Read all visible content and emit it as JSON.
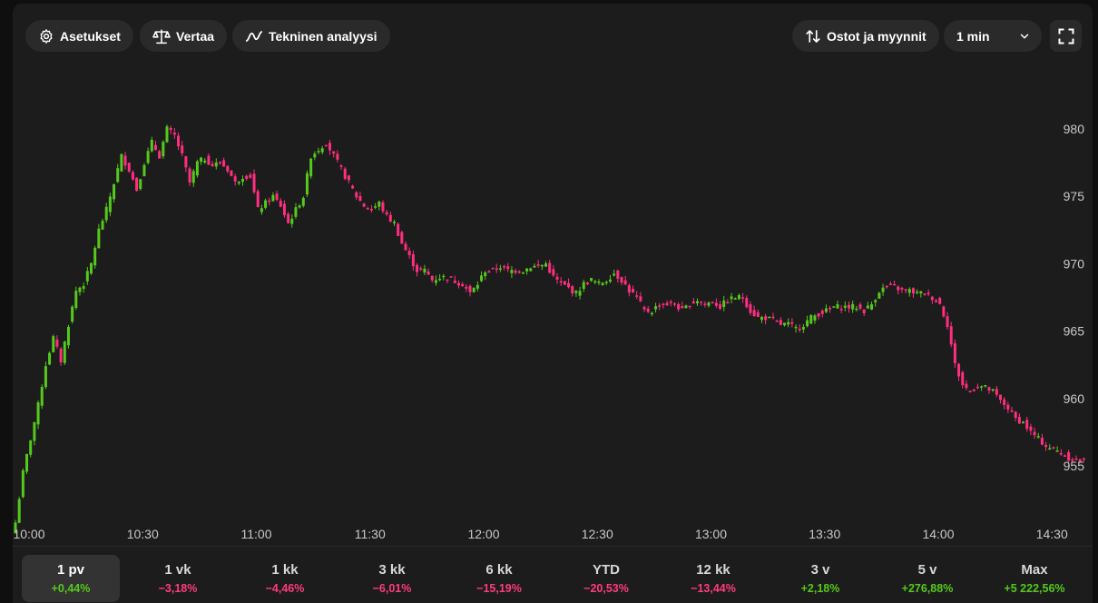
{
  "toolbar": {
    "settings_label": "Asetukset",
    "compare_label": "Vertaa",
    "technical_label": "Tekninen analyysi",
    "trades_label": "Ostot ja myynnit",
    "interval_value": "1 min"
  },
  "colors": {
    "up": "#55c91c",
    "down": "#ff2e7e",
    "positive_text": "#55c91c",
    "negative_text": "#ff3b7f"
  },
  "chart_data": {
    "type": "candlestick",
    "interval": "1 min",
    "x_ticks": [
      "10:00",
      "10:30",
      "11:00",
      "11:30",
      "12:00",
      "12:30",
      "13:00",
      "13:30",
      "14:00",
      "14:30"
    ],
    "y_ticks": [
      955,
      960,
      965,
      970,
      975,
      980
    ],
    "ylim": [
      953.5,
      985.5
    ],
    "grid": false,
    "close_path": [
      [
        0,
        950.8
      ],
      [
        2,
        954.5
      ],
      [
        4,
        957.0
      ],
      [
        6,
        959.5
      ],
      [
        8,
        962.5
      ],
      [
        10,
        964.5
      ],
      [
        12,
        962.8
      ],
      [
        14,
        965.5
      ],
      [
        16,
        968.0
      ],
      [
        18,
        968.5
      ],
      [
        20,
        970.0
      ],
      [
        22,
        972.5
      ],
      [
        24,
        974.0
      ],
      [
        26,
        976.0
      ],
      [
        28,
        978.0
      ],
      [
        30,
        977.0
      ],
      [
        32,
        975.5
      ],
      [
        34,
        977.5
      ],
      [
        36,
        979.0
      ],
      [
        38,
        978.0
      ],
      [
        40,
        980.0
      ],
      [
        42,
        979.5
      ],
      [
        44,
        978.0
      ],
      [
        46,
        976.0
      ],
      [
        48,
        977.5
      ],
      [
        50,
        977.8
      ],
      [
        52,
        977.3
      ],
      [
        54,
        977.5
      ],
      [
        56,
        977.0
      ],
      [
        58,
        976.0
      ],
      [
        60,
        976.5
      ],
      [
        62,
        976.5
      ],
      [
        64,
        974.0
      ],
      [
        66,
        974.5
      ],
      [
        68,
        975.0
      ],
      [
        70,
        974.3
      ],
      [
        72,
        973.0
      ],
      [
        74,
        974.0
      ],
      [
        76,
        975.0
      ],
      [
        78,
        978.0
      ],
      [
        80,
        978.5
      ],
      [
        82,
        979.0
      ],
      [
        84,
        978.0
      ],
      [
        86,
        977.0
      ],
      [
        88,
        976.0
      ],
      [
        90,
        975.0
      ],
      [
        92,
        974.3
      ],
      [
        94,
        974.0
      ],
      [
        96,
        974.5
      ],
      [
        98,
        973.5
      ],
      [
        100,
        973.0
      ],
      [
        102,
        971.5
      ],
      [
        104,
        970.5
      ],
      [
        106,
        969.5
      ],
      [
        108,
        969.5
      ],
      [
        110,
        968.8
      ],
      [
        112,
        969.0
      ],
      [
        114,
        969.0
      ],
      [
        116,
        968.7
      ],
      [
        118,
        968.5
      ],
      [
        120,
        967.8
      ],
      [
        122,
        968.5
      ],
      [
        124,
        969.5
      ],
      [
        126,
        969.5
      ],
      [
        128,
        969.8
      ],
      [
        130,
        969.5
      ],
      [
        132,
        969.5
      ],
      [
        134,
        969.5
      ],
      [
        136,
        969.8
      ],
      [
        138,
        969.8
      ],
      [
        140,
        970.0
      ],
      [
        142,
        969.0
      ],
      [
        144,
        968.5
      ],
      [
        146,
        968.2
      ],
      [
        148,
        967.8
      ],
      [
        150,
        968.5
      ],
      [
        152,
        968.8
      ],
      [
        154,
        968.5
      ],
      [
        156,
        968.8
      ],
      [
        158,
        969.3
      ],
      [
        160,
        968.8
      ],
      [
        162,
        968.0
      ],
      [
        164,
        967.5
      ],
      [
        166,
        966.5
      ],
      [
        168,
        966.5
      ],
      [
        170,
        967.0
      ],
      [
        172,
        967.0
      ],
      [
        174,
        967.0
      ],
      [
        176,
        966.5
      ],
      [
        178,
        967.0
      ],
      [
        180,
        967.3
      ],
      [
        182,
        967.0
      ],
      [
        184,
        967.2
      ],
      [
        186,
        966.8
      ],
      [
        188,
        967.3
      ],
      [
        190,
        967.5
      ],
      [
        192,
        967.5
      ],
      [
        194,
        966.5
      ],
      [
        196,
        966.0
      ],
      [
        198,
        966.0
      ],
      [
        200,
        965.8
      ],
      [
        202,
        965.5
      ],
      [
        204,
        965.5
      ],
      [
        206,
        965.2
      ],
      [
        208,
        965.5
      ],
      [
        210,
        966.0
      ],
      [
        212,
        966.3
      ],
      [
        214,
        966.5
      ],
      [
        216,
        966.8
      ],
      [
        218,
        966.8
      ],
      [
        220,
        966.8
      ],
      [
        222,
        966.8
      ],
      [
        224,
        966.5
      ],
      [
        226,
        967.0
      ],
      [
        228,
        968.0
      ],
      [
        230,
        968.3
      ],
      [
        232,
        968.3
      ],
      [
        234,
        968.0
      ],
      [
        236,
        968.0
      ],
      [
        238,
        967.8
      ],
      [
        240,
        967.8
      ],
      [
        242,
        967.5
      ],
      [
        244,
        967.0
      ],
      [
        246,
        965.5
      ],
      [
        248,
        962.5
      ],
      [
        250,
        961.0
      ],
      [
        252,
        960.5
      ],
      [
        254,
        961.0
      ],
      [
        256,
        960.8
      ],
      [
        258,
        960.5
      ],
      [
        260,
        959.8
      ],
      [
        262,
        959.3
      ],
      [
        264,
        958.5
      ],
      [
        266,
        958.2
      ],
      [
        268,
        957.5
      ],
      [
        270,
        957.0
      ],
      [
        272,
        956.5
      ],
      [
        274,
        956.2
      ],
      [
        276,
        956.0
      ],
      [
        278,
        955.6
      ],
      [
        280,
        955.4
      ],
      [
        282,
        955.3
      ]
    ],
    "periods": [
      {
        "label": "1 pv",
        "change": "+0,44%",
        "direction": "up",
        "selected": true
      },
      {
        "label": "1 vk",
        "change": "−3,18%",
        "direction": "down",
        "selected": false
      },
      {
        "label": "1 kk",
        "change": "−4,46%",
        "direction": "down",
        "selected": false
      },
      {
        "label": "3 kk",
        "change": "−6,01%",
        "direction": "down",
        "selected": false
      },
      {
        "label": "6 kk",
        "change": "−15,19%",
        "direction": "down",
        "selected": false
      },
      {
        "label": "YTD",
        "change": "−20,53%",
        "direction": "down",
        "selected": false
      },
      {
        "label": "12 kk",
        "change": "−13,44%",
        "direction": "down",
        "selected": false
      },
      {
        "label": "3 v",
        "change": "+2,18%",
        "direction": "up",
        "selected": false
      },
      {
        "label": "5 v",
        "change": "+276,88%",
        "direction": "up",
        "selected": false
      },
      {
        "label": "Max",
        "change": "+5 222,56%",
        "direction": "up",
        "selected": false
      }
    ]
  }
}
